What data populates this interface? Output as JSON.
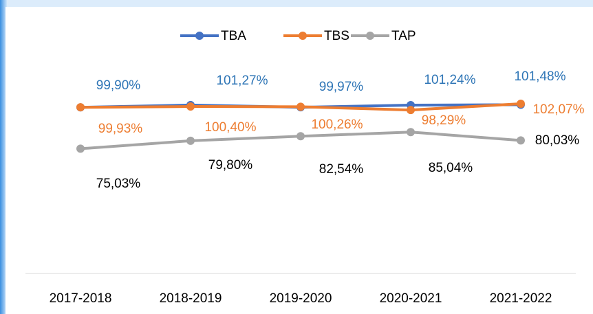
{
  "chart_data": {
    "type": "line",
    "categories": [
      "2017-2018",
      "2018-2019",
      "2019-2020",
      "2020-2021",
      "2021-2022"
    ],
    "series": [
      {
        "name": "TBA",
        "color": "#4472c4",
        "label_color": "#2e75b6",
        "values": [
          99.9,
          101.27,
          99.97,
          101.24,
          101.48
        ],
        "value_labels": [
          "99,90%",
          "101,27%",
          "99,97%",
          "101,24%",
          "101,48%"
        ]
      },
      {
        "name": "TBS",
        "color": "#ed7d31",
        "label_color": "#ed7d31",
        "values": [
          99.93,
          100.4,
          100.26,
          98.29,
          102.07
        ],
        "value_labels": [
          "99,93%",
          "100,40%",
          "100,26%",
          "98,29%",
          "102,07%"
        ]
      },
      {
        "name": "TAP",
        "color": "#a5a5a5",
        "label_color": "#000000",
        "values": [
          75.03,
          79.8,
          82.54,
          85.04,
          80.03
        ],
        "value_labels": [
          "75,03%",
          "79,80%",
          "82,54%",
          "85,04%",
          "80,03%"
        ]
      }
    ],
    "ylim": [
      0,
      150
    ],
    "grid": false,
    "legend": "top"
  }
}
